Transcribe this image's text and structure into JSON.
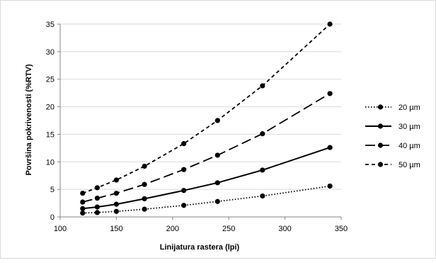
{
  "chart_data": {
    "type": "line",
    "title": "",
    "xlabel": "Linijatura rastera (lpi)",
    "ylabel": "Površina pokrivenosti (%RTV)",
    "xlim": [
      100,
      350
    ],
    "ylim": [
      0,
      35
    ],
    "x_ticks": [
      100,
      150,
      200,
      250,
      300,
      350
    ],
    "y_ticks": [
      0,
      5,
      10,
      15,
      20,
      25,
      30,
      35
    ],
    "x_tick_labels": [
      "100",
      "150",
      "200",
      "250",
      "300",
      "350"
    ],
    "y_tick_labels": [
      "0",
      "5",
      "10",
      "15",
      "20",
      "25",
      "30",
      "35"
    ],
    "grid": "horizontal",
    "legend_position": "right",
    "x": [
      120,
      133,
      150,
      175,
      210,
      240,
      280,
      340
    ],
    "series": [
      {
        "name": "20 µm",
        "style": "dotted",
        "values": [
          0.7,
          0.8,
          1.0,
          1.4,
          2.1,
          2.8,
          3.8,
          5.6
        ]
      },
      {
        "name": "30 µm",
        "style": "solid",
        "values": [
          1.5,
          1.8,
          2.3,
          3.3,
          4.8,
          6.2,
          8.5,
          12.6
        ]
      },
      {
        "name": "40 µm",
        "style": "long-dash",
        "values": [
          2.7,
          3.4,
          4.3,
          5.9,
          8.6,
          11.2,
          15.1,
          22.4
        ]
      },
      {
        "name": "50 µm",
        "style": "short-dash",
        "values": [
          4.3,
          5.3,
          6.7,
          9.2,
          13.3,
          17.5,
          23.8,
          35.0
        ]
      }
    ],
    "colors": {
      "line": "#000000",
      "grid": "#d9d9d9",
      "axis": "#868686"
    }
  }
}
